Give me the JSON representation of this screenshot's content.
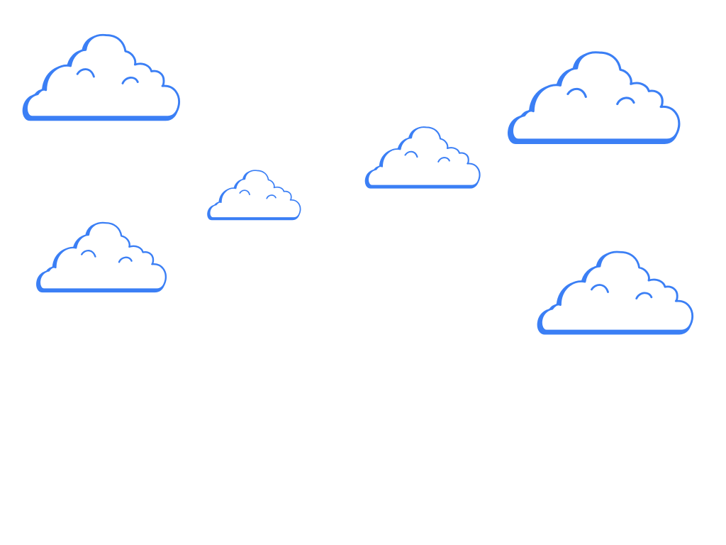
{
  "scene": {
    "background_color": "#ffffff",
    "cloud_color": "#3b7ff5",
    "cloud_fill": "#ffffff",
    "cloud_count": 6,
    "clouds": [
      {
        "icon": "cloud-icon"
      },
      {
        "icon": "cloud-icon"
      },
      {
        "icon": "cloud-icon"
      },
      {
        "icon": "cloud-icon"
      },
      {
        "icon": "cloud-icon"
      },
      {
        "icon": "cloud-icon"
      }
    ]
  }
}
